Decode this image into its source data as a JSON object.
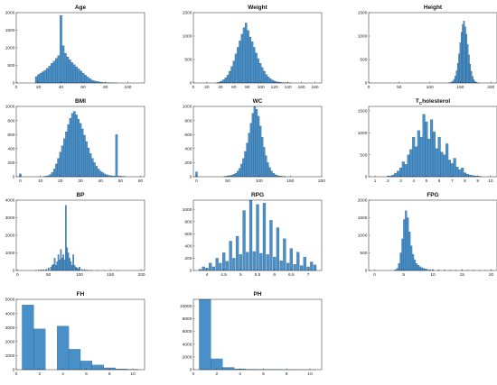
{
  "figure": {
    "background": "#ffffff",
    "bar_color": "#4a90c8",
    "bar_edge_color": "#1f4e78"
  },
  "chart_data": [
    {
      "type": "bar",
      "title": "Age",
      "xlim": [
        0,
        115
      ],
      "ylim": [
        0,
        2000
      ],
      "xticks": [
        0,
        20,
        40,
        60,
        80,
        100
      ],
      "yticks": [
        0,
        500,
        1000,
        1500,
        2000
      ],
      "bin_width": 2,
      "x": [
        18,
        20,
        22,
        24,
        26,
        28,
        30,
        32,
        34,
        36,
        38,
        40,
        42,
        44,
        46,
        48,
        50,
        52,
        54,
        56,
        58,
        60,
        62,
        64,
        66,
        68,
        70,
        72,
        74,
        76,
        78,
        80,
        82,
        84,
        86,
        88,
        90
      ],
      "values": [
        180,
        240,
        280,
        320,
        360,
        420,
        480,
        560,
        620,
        700,
        780,
        1920,
        1060,
        840,
        740,
        660,
        580,
        520,
        460,
        400,
        340,
        280,
        220,
        170,
        120,
        80,
        60,
        45,
        30,
        20,
        12,
        8,
        5,
        3,
        2,
        1,
        1
      ]
    },
    {
      "type": "bar",
      "title": "Weight",
      "xlim": [
        0,
        190
      ],
      "ylim": [
        0,
        1500
      ],
      "xticks": [
        0,
        20,
        40,
        60,
        80,
        100,
        120,
        140,
        160,
        180
      ],
      "yticks": [
        0,
        500,
        1000,
        1500
      ],
      "bin_width": 3,
      "x": [
        36,
        39,
        42,
        45,
        48,
        51,
        54,
        57,
        60,
        63,
        66,
        69,
        72,
        75,
        78,
        81,
        84,
        87,
        90,
        93,
        96,
        99,
        102,
        105,
        108,
        111,
        114,
        117,
        120,
        123,
        126,
        129,
        132,
        135,
        138,
        141,
        144
      ],
      "values": [
        10,
        20,
        40,
        70,
        110,
        170,
        250,
        350,
        470,
        620,
        760,
        900,
        1040,
        1180,
        1280,
        1120,
        980,
        880,
        760,
        640,
        520,
        420,
        330,
        250,
        180,
        130,
        90,
        60,
        40,
        28,
        18,
        12,
        8,
        5,
        3,
        2,
        1
      ]
    },
    {
      "type": "bar",
      "title": "Height",
      "xlim": [
        0,
        210
      ],
      "ylim": [
        0,
        1500
      ],
      "xticks": [
        0,
        50,
        100,
        150,
        200
      ],
      "yticks": [
        0,
        500,
        1000,
        1500
      ],
      "bin_width": 2,
      "x": [
        132,
        134,
        136,
        138,
        140,
        142,
        144,
        146,
        148,
        150,
        152,
        154,
        156,
        158,
        160,
        162,
        164,
        166,
        168,
        170,
        172,
        174,
        176,
        178,
        180
      ],
      "values": [
        5,
        10,
        20,
        40,
        80,
        150,
        260,
        420,
        620,
        860,
        1080,
        1250,
        1320,
        1200,
        1040,
        820,
        600,
        400,
        250,
        140,
        70,
        35,
        15,
        6,
        2
      ]
    },
    {
      "type": "bar",
      "title": "BMI",
      "xlim": [
        -2,
        62
      ],
      "ylim": [
        0,
        1000
      ],
      "xticks": [
        0,
        10,
        20,
        30,
        40,
        50,
        60
      ],
      "yticks": [
        0,
        200,
        400,
        600,
        800,
        1000
      ],
      "bin_width": 1,
      "x": [
        0,
        12,
        13,
        14,
        15,
        16,
        17,
        18,
        19,
        20,
        21,
        22,
        23,
        24,
        25,
        26,
        27,
        28,
        29,
        30,
        31,
        32,
        33,
        34,
        35,
        36,
        37,
        38,
        39,
        40,
        41,
        42,
        43,
        44,
        45,
        46,
        47,
        48,
        49,
        50,
        51,
        52
      ],
      "values": [
        40,
        5,
        8,
        15,
        30,
        60,
        110,
        180,
        260,
        350,
        440,
        540,
        640,
        740,
        830,
        900,
        930,
        880,
        820,
        760,
        680,
        590,
        500,
        410,
        330,
        260,
        200,
        150,
        110,
        80,
        60,
        40,
        30,
        20,
        15,
        12,
        10,
        600,
        8,
        6,
        5,
        3
      ]
    },
    {
      "type": "bar",
      "title": "WC",
      "xlim": [
        -5,
        200
      ],
      "ylim": [
        0,
        1000
      ],
      "xticks": [
        0,
        50,
        100,
        150,
        200
      ],
      "yticks": [
        0,
        200,
        400,
        600,
        800,
        1000
      ],
      "bin_width": 3,
      "x": [
        0,
        45,
        48,
        51,
        54,
        57,
        60,
        63,
        66,
        69,
        72,
        75,
        78,
        81,
        84,
        87,
        90,
        93,
        96,
        99,
        102,
        105,
        108,
        111,
        114,
        117,
        120,
        123,
        126,
        129,
        132,
        135,
        138,
        141
      ],
      "values": [
        70,
        5,
        8,
        12,
        18,
        25,
        35,
        50,
        80,
        120,
        180,
        260,
        360,
        480,
        620,
        760,
        900,
        1000,
        960,
        860,
        720,
        560,
        420,
        300,
        200,
        130,
        80,
        50,
        30,
        20,
        12,
        8,
        5,
        3
      ]
    },
    {
      "type": "bar",
      "title": "T",
      "title_subscript": "C",
      "title_suffix": "holesterol",
      "xlim": [
        0.5,
        10.5
      ],
      "ylim": [
        0,
        1600
      ],
      "xticks": [
        1,
        2,
        3,
        4,
        5,
        6,
        7,
        8,
        9,
        10
      ],
      "yticks": [
        0,
        500,
        1000,
        1500
      ],
      "bin_width": 0.2,
      "x": [
        2.0,
        2.2,
        2.4,
        2.6,
        2.8,
        3.0,
        3.2,
        3.4,
        3.6,
        3.8,
        4.0,
        4.2,
        4.4,
        4.6,
        4.8,
        5.0,
        5.2,
        5.4,
        5.6,
        5.8,
        6.0,
        6.2,
        6.4,
        6.6,
        6.8,
        7.0,
        7.2,
        7.4,
        7.6,
        7.8,
        8.0,
        8.2,
        8.4,
        8.6,
        8.8,
        9.0,
        9.2
      ],
      "values": [
        10,
        20,
        40,
        80,
        130,
        200,
        340,
        280,
        500,
        620,
        900,
        680,
        1050,
        900,
        1420,
        1250,
        860,
        1300,
        1020,
        640,
        900,
        560,
        500,
        750,
        380,
        300,
        420,
        220,
        160,
        200,
        90,
        60,
        40,
        30,
        20,
        12,
        8
      ]
    },
    {
      "type": "bar",
      "title": "BP",
      "xlim": [
        -2,
        205
      ],
      "ylim": [
        0,
        4000
      ],
      "xticks": [
        0,
        50,
        100,
        150,
        200
      ],
      "yticks": [
        0,
        1000,
        2000,
        3000,
        4000
      ],
      "bin_width": 2,
      "x": [
        30,
        34,
        38,
        42,
        46,
        50,
        54,
        56,
        58,
        60,
        62,
        64,
        66,
        68,
        70,
        72,
        74,
        76,
        78,
        80,
        82,
        84,
        86,
        88,
        90,
        92,
        94,
        96,
        98,
        100,
        104,
        108,
        112,
        116,
        120,
        130,
        140,
        160
      ],
      "values": [
        20,
        30,
        40,
        50,
        60,
        150,
        200,
        300,
        350,
        700,
        300,
        500,
        900,
        600,
        1200,
        700,
        900,
        600,
        3700,
        1300,
        1000,
        700,
        500,
        300,
        900,
        300,
        200,
        150,
        100,
        200,
        60,
        50,
        30,
        20,
        15,
        8,
        5,
        2
      ]
    },
    {
      "type": "bar",
      "title": "RPG",
      "xlim": [
        3.6,
        7.4
      ],
      "ylim": [
        0,
        1150
      ],
      "xticks": [
        4,
        4.5,
        5,
        5.5,
        6,
        6.5,
        7
      ],
      "yticks": [
        0,
        200,
        400,
        600,
        800,
        1000
      ],
      "bin_width": 0.08,
      "x": [
        3.8,
        3.9,
        4.0,
        4.1,
        4.2,
        4.3,
        4.4,
        4.5,
        4.6,
        4.7,
        4.8,
        4.9,
        5.0,
        5.1,
        5.2,
        5.3,
        5.4,
        5.5,
        5.6,
        5.7,
        5.8,
        5.9,
        6.0,
        6.1,
        6.2,
        6.3,
        6.4,
        6.5,
        6.6,
        6.7,
        6.8,
        6.9,
        7.0,
        7.1,
        7.2
      ],
      "values": [
        20,
        60,
        40,
        120,
        60,
        200,
        120,
        290,
        150,
        480,
        200,
        560,
        260,
        980,
        300,
        1150,
        310,
        1080,
        280,
        1100,
        260,
        820,
        220,
        700,
        160,
        520,
        120,
        360,
        100,
        300,
        80,
        220,
        60,
        140,
        90
      ]
    },
    {
      "type": "bar",
      "title": "FPG",
      "xlim": [
        -1,
        21
      ],
      "ylim": [
        0,
        2000
      ],
      "xticks": [
        0,
        5,
        10,
        15,
        20
      ],
      "yticks": [
        0,
        500,
        1000,
        1500,
        2000
      ],
      "bin_width": 0.3,
      "x": [
        3.6,
        3.9,
        4.2,
        4.5,
        4.8,
        5.1,
        5.4,
        5.7,
        6.0,
        6.3,
        6.6,
        6.9,
        7.2,
        7.5,
        7.8,
        8.1,
        8.4,
        8.7,
        9.0,
        9.5,
        10.0,
        11,
        12,
        13,
        14,
        15,
        16,
        17,
        18,
        19,
        20
      ],
      "values": [
        20,
        60,
        200,
        500,
        900,
        1450,
        1700,
        1500,
        1100,
        700,
        460,
        300,
        200,
        150,
        110,
        80,
        60,
        45,
        35,
        25,
        20,
        15,
        12,
        10,
        8,
        6,
        5,
        4,
        3,
        2,
        2
      ]
    },
    {
      "type": "bar",
      "title": "FH",
      "xlim": [
        0,
        11
      ],
      "ylim": [
        0,
        5000
      ],
      "xticks": [
        0,
        2,
        4,
        6,
        8,
        10
      ],
      "yticks": [
        0,
        1000,
        2000,
        3000,
        4000,
        5000
      ],
      "bin_width": 1,
      "x": [
        1,
        2,
        3,
        4,
        5,
        6,
        7,
        8,
        9,
        10
      ],
      "values": [
        4600,
        2900,
        0,
        3100,
        1450,
        620,
        330,
        130,
        50,
        15
      ]
    },
    {
      "type": "bar",
      "title": "PH",
      "xlim": [
        0,
        11
      ],
      "ylim": [
        0,
        11000
      ],
      "xticks": [
        0,
        2,
        4,
        6,
        8,
        10
      ],
      "yticks": [
        0,
        2000,
        4000,
        6000,
        8000,
        10000
      ],
      "bin_width": 1,
      "x": [
        1,
        2,
        3,
        4,
        5,
        6,
        7,
        8,
        9,
        10
      ],
      "values": [
        11000,
        1700,
        350,
        120,
        60,
        30,
        20,
        10,
        5,
        3
      ]
    }
  ]
}
